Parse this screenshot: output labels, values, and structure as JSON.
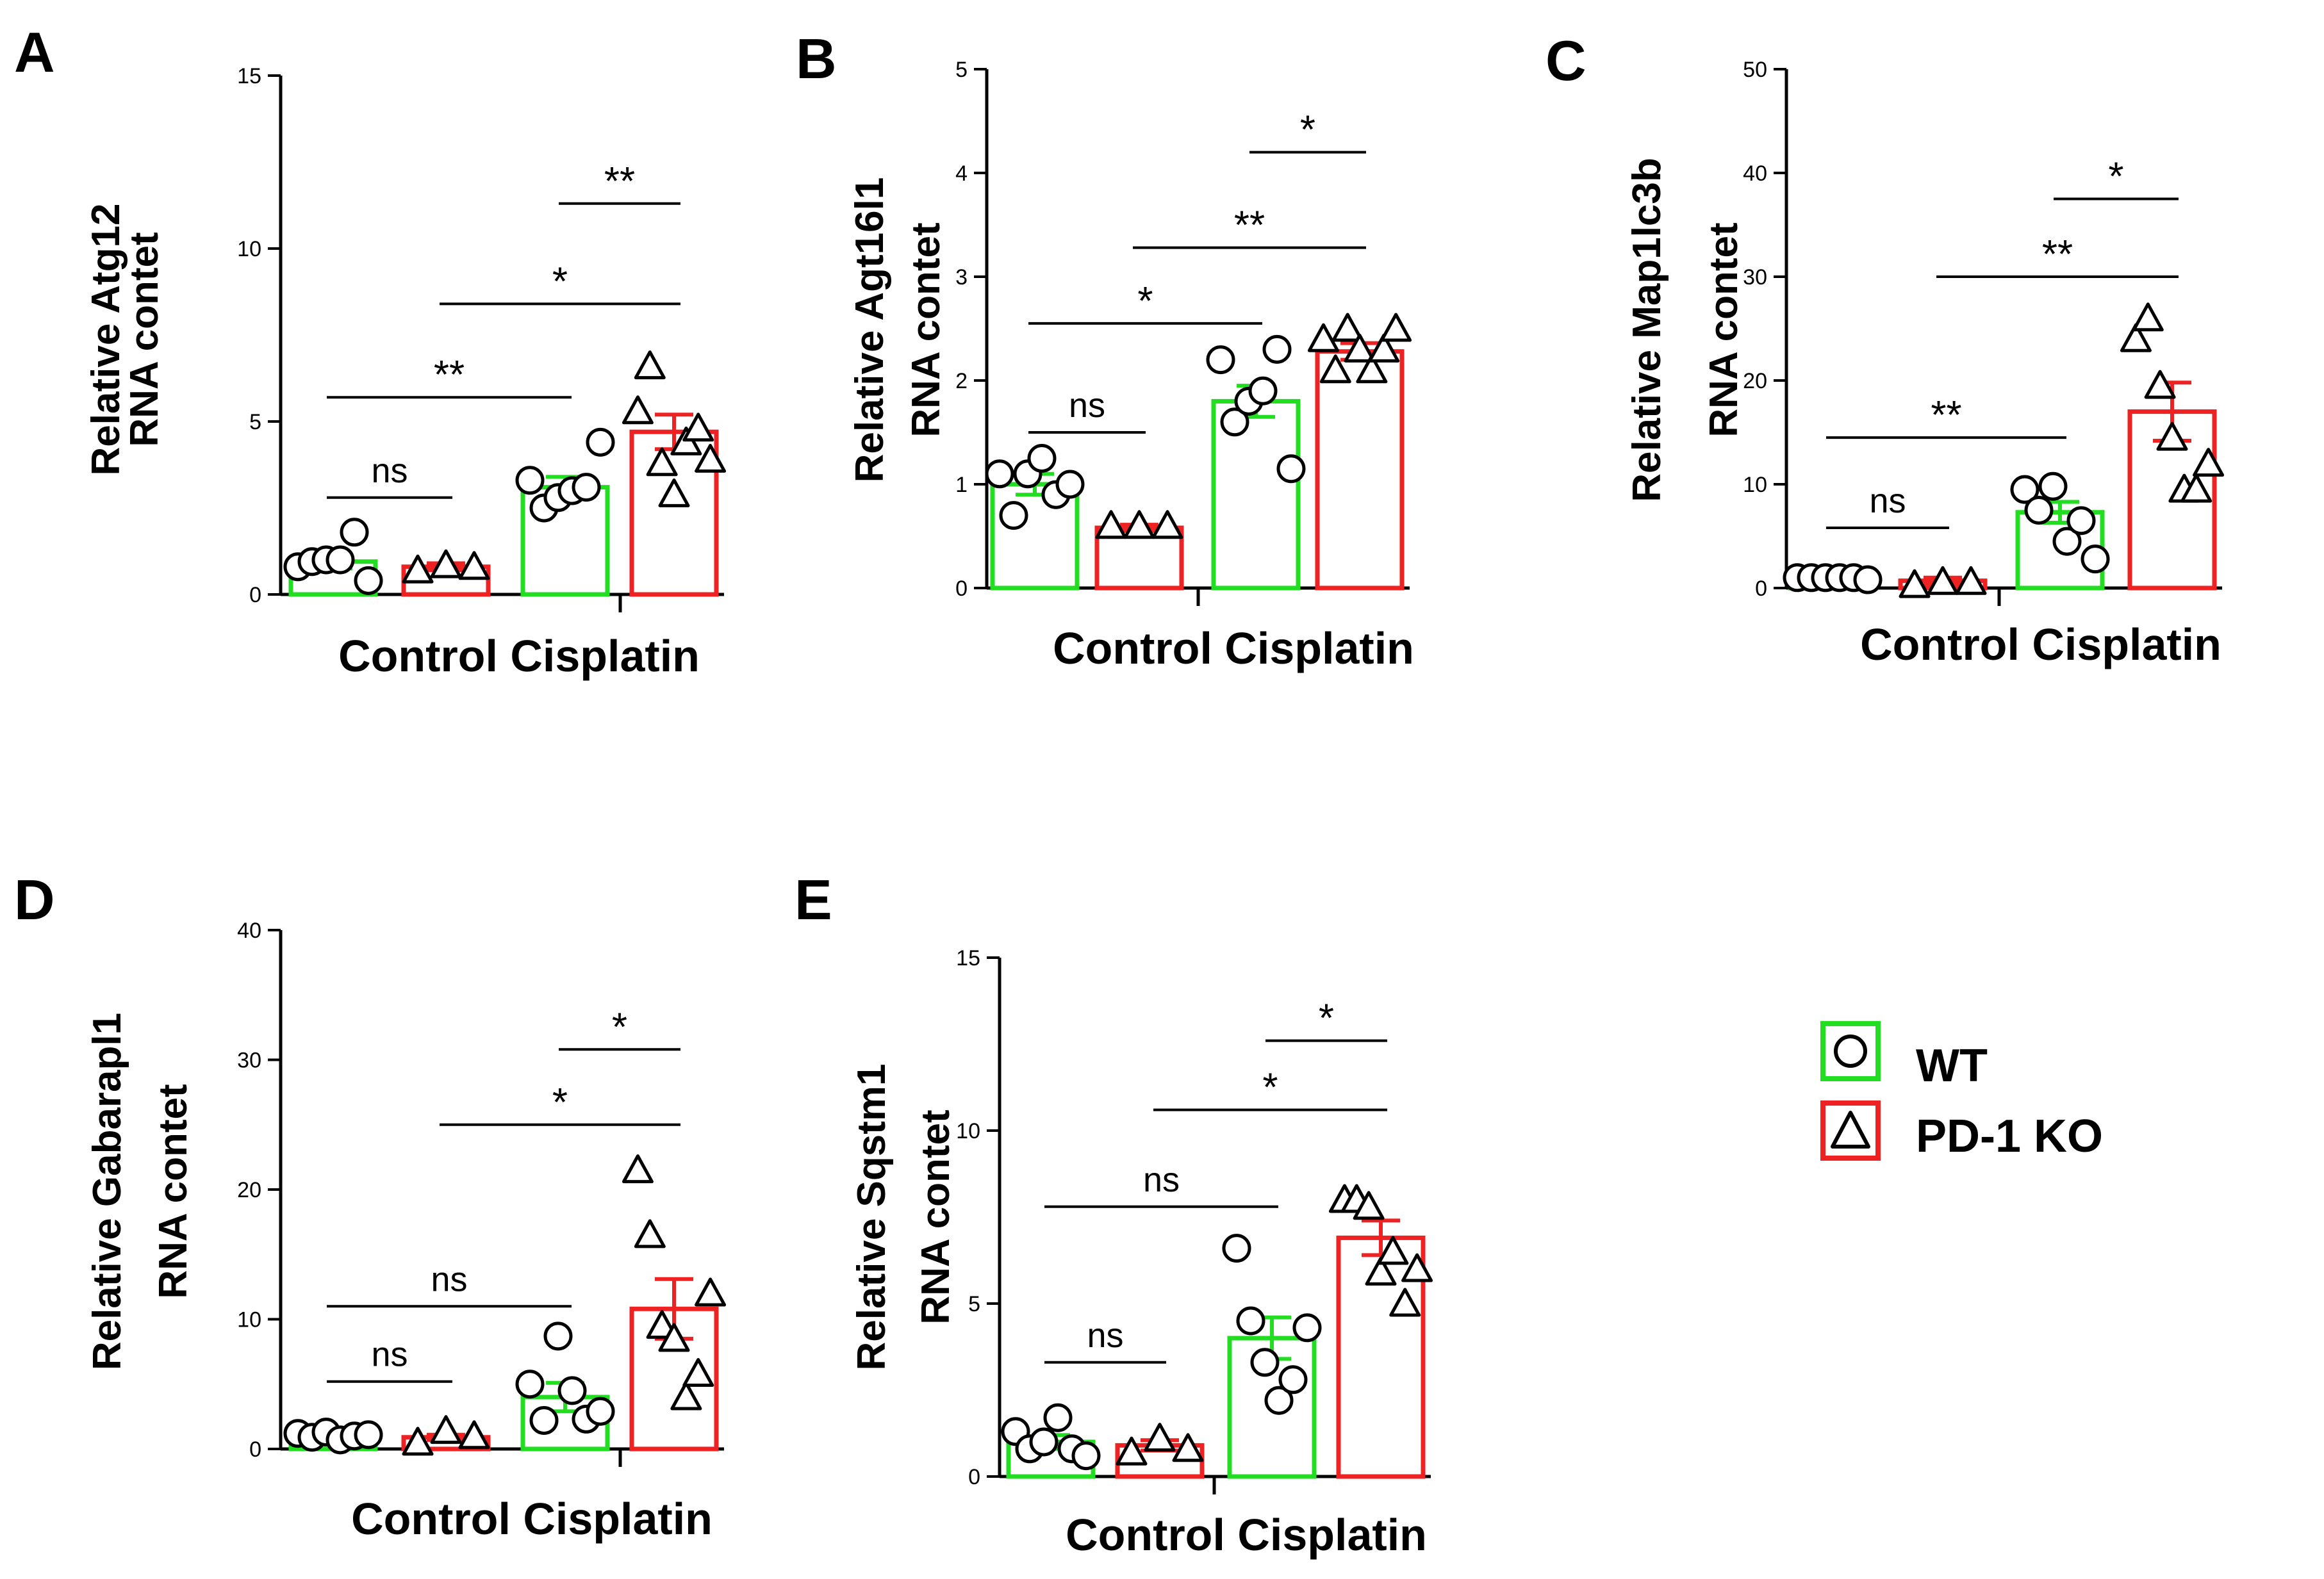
{
  "legend": {
    "items": [
      {
        "label": "WT",
        "color": "#22dd22",
        "marker": "circle"
      },
      {
        "label": "PD-1 KO",
        "color": "#ee2222",
        "marker": "triangle"
      }
    ]
  },
  "chart_data": [
    {
      "type": "bar",
      "panel": "A",
      "title": "",
      "ylabel_line1": "Relative Atg12",
      "ylabel_line2": "RNA contet",
      "xlabel": "Control Cisplatin",
      "ylim": [
        0,
        15
      ],
      "yticks": [
        "0",
        "5",
        "10",
        "15"
      ],
      "series": [
        {
          "name": "WT",
          "values": [
            0.95,
            3.1
          ],
          "sem": [
            0.2,
            0.3
          ],
          "points": [
            [
              0.8,
              0.95,
              1.0,
              1.0,
              1.8,
              0.4
            ],
            [
              3.3,
              2.5,
              2.8,
              3.0,
              3.1,
              4.4
            ]
          ]
        },
        {
          "name": "PD-1 KO",
          "values": [
            0.8,
            4.7
          ],
          "sem": [
            0.1,
            0.5
          ],
          "points": [
            [
              0.7,
              0.85,
              0.8
            ],
            [
              5.3,
              6.6,
              3.8,
              2.9,
              4.4,
              4.8,
              3.9
            ]
          ]
        }
      ],
      "comparisons": [
        {
          "from": [
            0,
            0
          ],
          "to": [
            0,
            1
          ],
          "y": 2.8,
          "label": "ns"
        },
        {
          "from": [
            0,
            0
          ],
          "to": [
            1,
            0
          ],
          "y": 5.7,
          "label": "**"
        },
        {
          "from": [
            0,
            1
          ],
          "to": [
            1,
            1
          ],
          "y": 8.4,
          "label": "*"
        },
        {
          "from": [
            1,
            0
          ],
          "to": [
            1,
            1
          ],
          "y": 11.3,
          "label": "**"
        }
      ]
    },
    {
      "type": "bar",
      "panel": "B",
      "title": "",
      "ylabel_line1": "Relative Agt16l1",
      "ylabel_line2": "RNA contet",
      "xlabel": "Control Cisplatin",
      "ylim": [
        0,
        5
      ],
      "yticks": [
        "0",
        "1",
        "2",
        "3",
        "4",
        "5"
      ],
      "series": [
        {
          "name": "WT",
          "values": [
            1.0,
            1.8
          ],
          "sem": [
            0.1,
            0.15
          ],
          "points": [
            [
              1.1,
              0.7,
              1.1,
              1.25,
              0.9,
              1.0
            ],
            [
              2.2,
              1.6,
              1.8,
              1.9,
              2.3,
              1.15
            ]
          ]
        },
        {
          "name": "PD-1 KO",
          "values": [
            0.58,
            2.28
          ],
          "sem": [
            0.03,
            0.08
          ],
          "points": [
            [
              0.6,
              0.6,
              0.6
            ],
            [
              2.4,
              2.1,
              2.5,
              2.3,
              2.1,
              2.3,
              2.5
            ]
          ]
        }
      ],
      "comparisons": [
        {
          "from": [
            0,
            0
          ],
          "to": [
            0,
            1
          ],
          "y": 1.5,
          "label": "ns"
        },
        {
          "from": [
            0,
            0
          ],
          "to": [
            1,
            0
          ],
          "y": 2.55,
          "label": "*"
        },
        {
          "from": [
            0,
            1
          ],
          "to": [
            1,
            1
          ],
          "y": 3.28,
          "label": "**"
        },
        {
          "from": [
            1,
            0
          ],
          "to": [
            1,
            1
          ],
          "y": 4.2,
          "label": "*"
        }
      ]
    },
    {
      "type": "bar",
      "panel": "C",
      "title": "",
      "ylabel_line1": "Relative Map1lc3b",
      "ylabel_line2": "RNA contet",
      "xlabel": "Control Cisplatin",
      "ylim": [
        0,
        50
      ],
      "yticks": [
        "0",
        "10",
        "20",
        "30",
        "40",
        "50"
      ],
      "series": [
        {
          "name": "WT",
          "values": [
            1.0,
            7.3
          ],
          "sem": [
            0.2,
            1.0
          ],
          "points": [
            [
              1.0,
              1.0,
              1.0,
              1.0,
              1.0,
              0.8
            ],
            [
              9.5,
              7.5,
              9.8,
              4.5,
              6.5,
              2.8
            ]
          ]
        },
        {
          "name": "PD-1 KO",
          "values": [
            0.7,
            17.0
          ],
          "sem": [
            0.3,
            2.8
          ],
          "points": [
            [
              0.3,
              0.6,
              0.6
            ],
            [
              24.0,
              26.0,
              19.5,
              14.5,
              9.5,
              9.5,
              12.0
            ]
          ]
        }
      ],
      "comparisons": [
        {
          "from": [
            0,
            0
          ],
          "to": [
            0,
            1
          ],
          "y": 5.8,
          "label": "ns"
        },
        {
          "from": [
            0,
            0
          ],
          "to": [
            1,
            0
          ],
          "y": 14.5,
          "label": "**"
        },
        {
          "from": [
            0,
            1
          ],
          "to": [
            1,
            1
          ],
          "y": 30.0,
          "label": "**"
        },
        {
          "from": [
            1,
            0
          ],
          "to": [
            1,
            1
          ],
          "y": 37.5,
          "label": "*"
        }
      ]
    },
    {
      "type": "bar",
      "panel": "D",
      "title": "",
      "ylabel_line1": "Relative Gabarapl1",
      "ylabel_line2": "RNA contet",
      "xlabel": "Control Cisplatin",
      "ylim": [
        0,
        40
      ],
      "yticks": [
        "0",
        "10",
        "20",
        "30",
        "40"
      ],
      "series": [
        {
          "name": "WT",
          "values": [
            1.1,
            4.0
          ],
          "sem": [
            0.2,
            1.1
          ],
          "points": [
            [
              1.2,
              0.9,
              1.3,
              0.7,
              1.0,
              1.1
            ],
            [
              5.0,
              2.2,
              8.7,
              4.5,
              2.3,
              2.9
            ]
          ]
        },
        {
          "name": "PD-1 KO",
          "values": [
            0.9,
            10.8
          ],
          "sem": [
            0.2,
            2.3
          ],
          "points": [
            [
              0.5,
              1.4,
              1.0
            ],
            [
              21.5,
              16.5,
              9.5,
              8.5,
              4.0,
              5.8,
              12.0
            ]
          ]
        }
      ],
      "comparisons": [
        {
          "from": [
            0,
            0
          ],
          "to": [
            0,
            1
          ],
          "y": 5.2,
          "label": "ns"
        },
        {
          "from": [
            0,
            0
          ],
          "to": [
            1,
            0
          ],
          "y": 11.0,
          "label": "ns"
        },
        {
          "from": [
            0,
            1
          ],
          "to": [
            1,
            1
          ],
          "y": 25.0,
          "label": "*"
        },
        {
          "from": [
            1,
            0
          ],
          "to": [
            1,
            1
          ],
          "y": 30.8,
          "label": "*"
        }
      ]
    },
    {
      "type": "bar",
      "panel": "E",
      "title": "",
      "ylabel_line1": "Relative Sqstm1",
      "ylabel_line2": "RNA contet",
      "xlabel": "Control Cisplatin",
      "ylim": [
        0,
        15
      ],
      "yticks": [
        "0",
        "5",
        "10",
        "15"
      ],
      "series": [
        {
          "name": "WT",
          "values": [
            1.0,
            4.0
          ],
          "sem": [
            0.2,
            0.6
          ],
          "points": [
            [
              1.3,
              0.8,
              1.0,
              1.7,
              0.8,
              0.6
            ],
            [
              6.6,
              4.5,
              3.3,
              2.2,
              2.8,
              4.3
            ]
          ]
        },
        {
          "name": "PD-1 KO",
          "values": [
            0.9,
            6.9
          ],
          "sem": [
            0.15,
            0.5
          ],
          "points": [
            [
              0.7,
              1.1,
              0.8
            ],
            [
              8.0,
              8.0,
              7.8,
              5.9,
              6.5,
              5.0,
              6.0
            ]
          ]
        }
      ],
      "comparisons": [
        {
          "from": [
            0,
            0
          ],
          "to": [
            0,
            1
          ],
          "y": 3.3,
          "label": "ns"
        },
        {
          "from": [
            0,
            0
          ],
          "to": [
            1,
            0
          ],
          "y": 7.8,
          "label": "ns"
        },
        {
          "from": [
            0,
            1
          ],
          "to": [
            1,
            1
          ],
          "y": 10.6,
          "label": "*"
        },
        {
          "from": [
            1,
            0
          ],
          "to": [
            1,
            1
          ],
          "y": 12.6,
          "label": "*"
        }
      ]
    }
  ]
}
